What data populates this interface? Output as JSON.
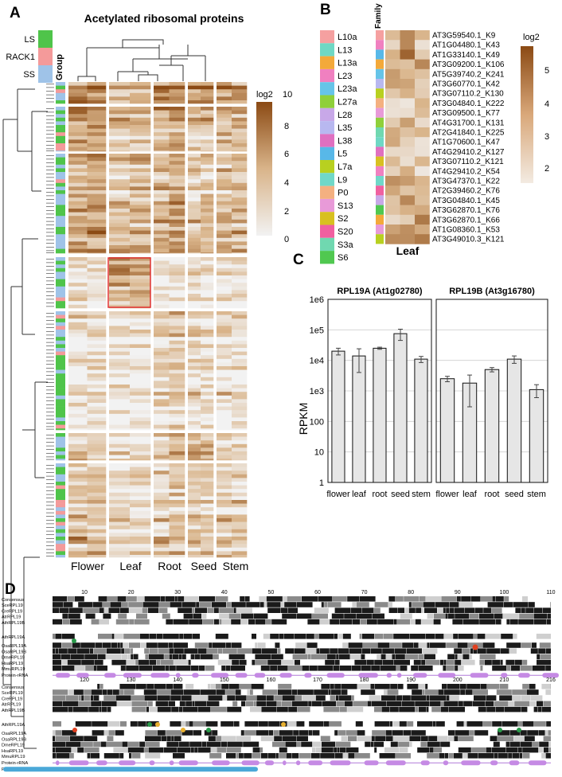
{
  "panels": {
    "A": {
      "letter": "A",
      "title": "Acetylated ribosomal proteins",
      "group_header": "Group",
      "groups": [
        {
          "name": "LS",
          "color": "#4fc44a"
        },
        {
          "name": "RACK1",
          "color": "#f49a9a"
        },
        {
          "name": "SS",
          "color": "#9fc3e8"
        }
      ],
      "legend_title": "log2",
      "legend_ticks": [
        "10",
        "8",
        "6",
        "4",
        "2",
        "0"
      ],
      "columns": [
        "Flower",
        "Leaf",
        "Root",
        "Seed",
        "Stem"
      ],
      "colors": {
        "high": "#8b4a14",
        "low": "#f2f2f2",
        "highlight": "#e03030"
      }
    },
    "B": {
      "letter": "B",
      "family_header": "Family",
      "families": [
        {
          "name": "L10a",
          "color": "#f5a0a0"
        },
        {
          "name": "L13",
          "color": "#6fd8c4"
        },
        {
          "name": "L13a",
          "color": "#f3a93a"
        },
        {
          "name": "L23",
          "color": "#f080c0"
        },
        {
          "name": "L23a",
          "color": "#66c4e8"
        },
        {
          "name": "L27a",
          "color": "#8fd03a"
        },
        {
          "name": "L28",
          "color": "#c8a8e8"
        },
        {
          "name": "L35",
          "color": "#b8b8f0"
        },
        {
          "name": "L38",
          "color": "#e070c0"
        },
        {
          "name": "L5",
          "color": "#58b8e8"
        },
        {
          "name": "L7a",
          "color": "#b8d020"
        },
        {
          "name": "L9",
          "color": "#70d8c8"
        },
        {
          "name": "P0",
          "color": "#f4b080"
        },
        {
          "name": "S13",
          "color": "#e89ad8"
        },
        {
          "name": "S2",
          "color": "#d8c020"
        },
        {
          "name": "S20",
          "color": "#f060a0"
        },
        {
          "name": "S3a",
          "color": "#70d8b0"
        },
        {
          "name": "S6",
          "color": "#50c850"
        }
      ],
      "rows": [
        "AT3G59540.1_K9",
        "AT1G04480.1_K43",
        "AT1G33140.1_K49",
        "AT3G09200.1_K106",
        "AT5G39740.2_K241",
        "AT3G60770.1_K42",
        "AT3G07110.2_K130",
        "AT3G04840.1_K222",
        "AT3G09500.1_K77",
        "AT4G31700.1_K131",
        "AT2G41840.1_K225",
        "AT1G70600.1_K47",
        "AT4G29410.2_K127",
        "AT3G07110.2_K121",
        "AT4G29410.2_K54",
        "AT3G47370.1_K22",
        "AT2G39460.2_K76",
        "AT3G04840.1_K45",
        "AT3G62870.1_K76",
        "AT3G62870.1_K66",
        "AT1G08360.1_K53",
        "AT3G49010.3_K121"
      ],
      "column_label": "Leaf",
      "legend_title": "log2",
      "legend_ticks": [
        "5",
        "4",
        "3",
        "2"
      ]
    },
    "C": {
      "letter": "C",
      "ylabel": "RPKM",
      "yticks": [
        "1e6",
        "1e5",
        "1e4",
        "1e3",
        "100",
        "10",
        "1"
      ]
    },
    "D": {
      "letter": "D",
      "block1": {
        "positions": [
          "10",
          "20",
          "30",
          "40",
          "50",
          "60",
          "70",
          "80",
          "90",
          "100",
          "110"
        ],
        "labels": [
          "Consensus",
          "SceRPL19",
          "CreRPL19",
          "AtrRPL19",
          "AthRPL19B",
          "AthRPL19A",
          "OsaRPL19A",
          "OsaRPL19B",
          "DmeRPL19",
          "HsaRPL19",
          "MmuRPL19",
          "Protein-rRNA"
        ]
      },
      "block2": {
        "positions": [
          "120",
          "130",
          "140",
          "150",
          "160",
          "170",
          "180",
          "190",
          "200",
          "210",
          "216"
        ],
        "labels": [
          "Consensus",
          "SceRPL19",
          "CreRPL19",
          "AtrRPL19",
          "AthRPL19B",
          "AthRPL19A",
          "OsaRPL19A",
          "OsaRPL19B",
          "DmeRPL19",
          "HsaRPL19",
          "MmuRPL19",
          "Protein-rRNA",
          "Protein-protein"
        ]
      }
    }
  },
  "chart_data": [
    {
      "type": "bar",
      "title": "RPL19A (At1g02780)",
      "categories": [
        "flower",
        "leaf",
        "root",
        "seed",
        "stem"
      ],
      "values": [
        20000,
        14000,
        25000,
        75000,
        11000
      ],
      "errors": [
        5000,
        10000,
        2000,
        30000,
        2500
      ],
      "ylabel": "RPKM",
      "yscale": "log",
      "ylim": [
        1,
        1000000
      ],
      "bar_color": "#e6e6e6",
      "grid": true
    },
    {
      "type": "bar",
      "title": "RPL19B (At3g16780)",
      "categories": [
        "flower",
        "leaf",
        "root",
        "seed",
        "stem"
      ],
      "values": [
        2500,
        1800,
        5000,
        11000,
        1100
      ],
      "errors": [
        500,
        1500,
        800,
        3000,
        500
      ],
      "ylabel": "RPKM",
      "yscale": "log",
      "ylim": [
        1,
        1000000
      ],
      "bar_color": "#e6e6e6",
      "grid": true
    }
  ]
}
